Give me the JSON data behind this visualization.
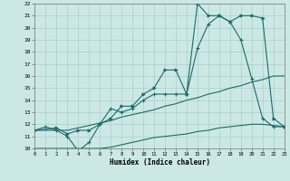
{
  "xlabel": "Humidex (Indice chaleur)",
  "bg_color": "#cce8e5",
  "grid_color": "#aacfcc",
  "line_color": "#1a6b6b",
  "xlim": [
    0,
    23
  ],
  "ylim": [
    10,
    22
  ],
  "xticks": [
    0,
    1,
    2,
    3,
    4,
    5,
    6,
    7,
    8,
    9,
    10,
    11,
    12,
    13,
    14,
    15,
    16,
    17,
    18,
    19,
    20,
    21,
    22,
    23
  ],
  "yticks": [
    10,
    11,
    12,
    13,
    14,
    15,
    16,
    17,
    18,
    19,
    20,
    21,
    22
  ],
  "line_flat": {
    "x": [
      0,
      1,
      2,
      3,
      4,
      5,
      6,
      7,
      8,
      9,
      10,
      11,
      12,
      13,
      14,
      15,
      16,
      17,
      18,
      19,
      20,
      21,
      22,
      23
    ],
    "y": [
      10.0,
      10.0,
      10.0,
      10.0,
      10.0,
      10.0,
      10.0,
      10.1,
      10.3,
      10.5,
      10.7,
      10.9,
      11.0,
      11.1,
      11.2,
      11.4,
      11.5,
      11.7,
      11.8,
      11.9,
      12.0,
      12.0,
      11.9,
      11.8
    ]
  },
  "line_diag": {
    "x": [
      0,
      1,
      2,
      3,
      4,
      5,
      6,
      7,
      8,
      9,
      10,
      11,
      12,
      13,
      14,
      15,
      16,
      17,
      18,
      19,
      20,
      21,
      22,
      23
    ],
    "y": [
      11.5,
      11.5,
      11.5,
      11.5,
      11.7,
      11.9,
      12.1,
      12.3,
      12.6,
      12.8,
      13.0,
      13.2,
      13.5,
      13.7,
      14.0,
      14.2,
      14.5,
      14.7,
      15.0,
      15.2,
      15.5,
      15.7,
      16.0,
      16.0
    ]
  },
  "line_wave": {
    "x": [
      0,
      1,
      2,
      3,
      4,
      5,
      6,
      7,
      8,
      9,
      10,
      11,
      12,
      13,
      14,
      15,
      16,
      17,
      18,
      19,
      20,
      21,
      22,
      23
    ],
    "y": [
      11.5,
      11.8,
      11.5,
      11.0,
      9.8,
      10.5,
      12.0,
      13.3,
      13.0,
      13.3,
      14.0,
      14.5,
      14.5,
      14.5,
      14.5,
      18.3,
      20.3,
      21.0,
      20.5,
      19.0,
      15.8,
      12.5,
      11.8,
      11.8
    ]
  },
  "line_peak": {
    "x": [
      0,
      2,
      3,
      4,
      5,
      6,
      7,
      8,
      9,
      10,
      11,
      12,
      13,
      14,
      15,
      16,
      17,
      18,
      19,
      20,
      21,
      22,
      23
    ],
    "y": [
      11.5,
      11.7,
      11.2,
      11.5,
      11.5,
      12.0,
      12.5,
      13.5,
      13.5,
      14.5,
      15.0,
      16.5,
      16.5,
      14.5,
      22.0,
      21.0,
      21.0,
      20.5,
      21.0,
      21.0,
      20.8,
      12.5,
      11.8
    ]
  }
}
